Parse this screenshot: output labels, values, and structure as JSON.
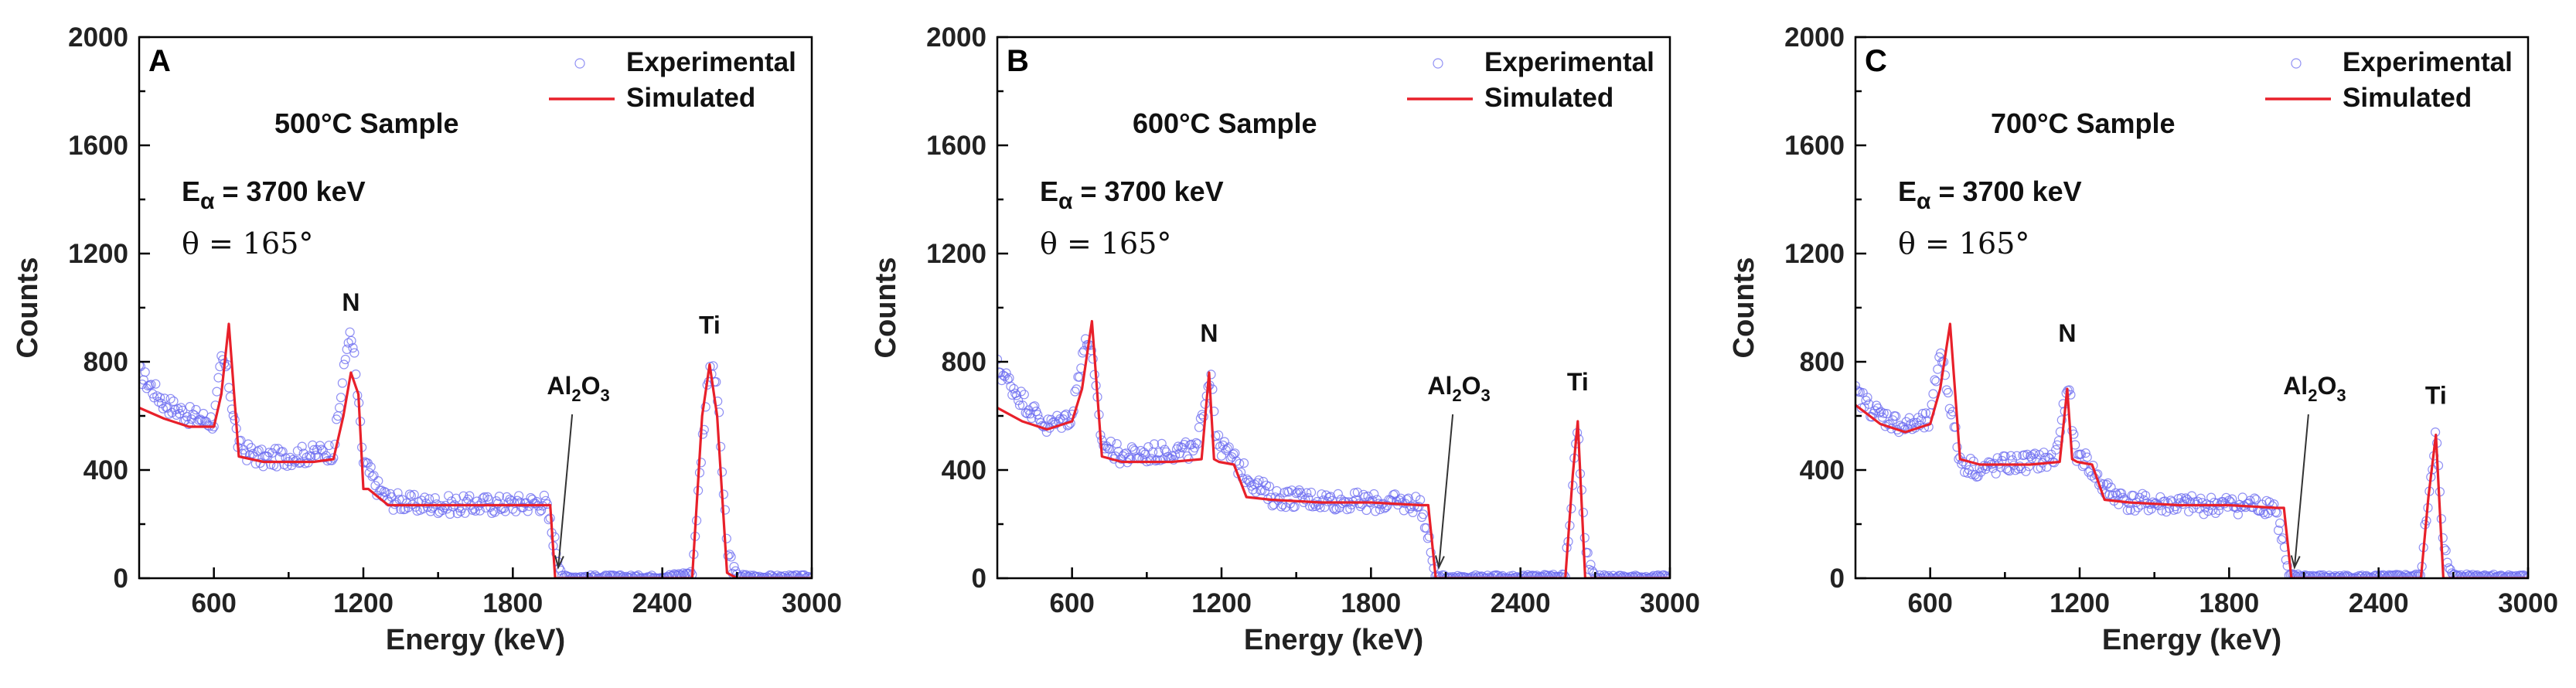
{
  "colors": {
    "experimental": "#6b6bf0",
    "simulated": "#e8202a",
    "axis": "#000000"
  },
  "chart_data": [
    {
      "type": "line",
      "panel_label": "A",
      "title": "",
      "xlabel": "Energy (keV)",
      "ylabel": "Counts",
      "xlim": [
        300,
        3000
      ],
      "ylim": [
        0,
        2000
      ],
      "x_ticks": [
        600,
        1200,
        1800,
        2400,
        3000
      ],
      "y_ticks": [
        0,
        400,
        800,
        1200,
        1600,
        2000
      ],
      "legend_placement": "top-right",
      "annotations": {
        "sample": "500°C Sample",
        "energy": "E",
        "energy_sub": "α",
        "energy_val": " = 3700 keV",
        "theta": "θ = 165°"
      },
      "peak_labels": {
        "n": "N",
        "ti": "Ti",
        "al": "Al",
        "al_sub1": "2",
        "al_o": "O",
        "al_sub2": "3"
      },
      "series": [
        {
          "name": "Experimental",
          "style": "scatter",
          "x": [
            300,
            400,
            500,
            600,
            630,
            650,
            700,
            800,
            900,
            1000,
            1080,
            1120,
            1140,
            1160,
            1200,
            1230,
            1260,
            1300,
            1400,
            1600,
            1800,
            1930,
            1960,
            2000,
            2200,
            2400,
            2520,
            2560,
            2590,
            2620,
            2660,
            2700,
            2800,
            3000
          ],
          "y": [
            760,
            650,
            600,
            580,
            800,
            780,
            480,
            440,
            450,
            460,
            470,
            750,
            900,
            850,
            430,
            380,
            330,
            290,
            275,
            270,
            275,
            280,
            160,
            5,
            5,
            5,
            20,
            500,
            800,
            700,
            100,
            10,
            5,
            5
          ]
        },
        {
          "name": "Simulated",
          "style": "line",
          "x": [
            300,
            400,
            500,
            600,
            630,
            660,
            700,
            800,
            1000,
            1080,
            1120,
            1150,
            1180,
            1200,
            1220,
            1260,
            1300,
            1500,
            1800,
            1950,
            1970,
            2000,
            2200,
            2400,
            2520,
            2560,
            2590,
            2620,
            2660,
            2700,
            3000
          ],
          "y": [
            630,
            590,
            560,
            560,
            680,
            940,
            450,
            430,
            430,
            440,
            600,
            760,
            680,
            330,
            330,
            300,
            270,
            270,
            270,
            270,
            0,
            0,
            0,
            0,
            0,
            600,
            790,
            600,
            20,
            0,
            0
          ]
        }
      ]
    },
    {
      "type": "line",
      "panel_label": "B",
      "title": "",
      "xlabel": "Energy (keV)",
      "ylabel": "Counts",
      "xlim": [
        300,
        3000
      ],
      "ylim": [
        0,
        2000
      ],
      "x_ticks": [
        600,
        1200,
        1800,
        2400,
        3000
      ],
      "y_ticks": [
        0,
        400,
        800,
        1200,
        1600,
        2000
      ],
      "legend_placement": "top-right",
      "annotations": {
        "sample": "600°C Sample",
        "energy": "E",
        "energy_sub": "α",
        "energy_val": " = 3700 keV",
        "theta": "θ = 165°"
      },
      "peak_labels": {
        "n": "N",
        "ti": "Ti",
        "al": "Al",
        "al_sub1": "2",
        "al_o": "O",
        "al_sub2": "3"
      },
      "series": [
        {
          "name": "Experimental",
          "style": "scatter",
          "x": [
            300,
            400,
            500,
            600,
            640,
            670,
            720,
            800,
            900,
            1000,
            1100,
            1140,
            1160,
            1180,
            1220,
            1300,
            1400,
            1600,
            1800,
            2000,
            2030,
            2060,
            2200,
            2400,
            2580,
            2610,
            2630,
            2660,
            2700,
            2800,
            3000
          ],
          "y": [
            780,
            660,
            560,
            600,
            830,
            890,
            500,
            450,
            460,
            470,
            470,
            700,
            760,
            500,
            470,
            380,
            300,
            290,
            280,
            275,
            140,
            5,
            5,
            5,
            10,
            350,
            570,
            100,
            5,
            5,
            5
          ]
        },
        {
          "name": "Simulated",
          "style": "line",
          "x": [
            300,
            400,
            500,
            600,
            640,
            680,
            720,
            800,
            1000,
            1120,
            1150,
            1170,
            1190,
            1250,
            1300,
            1400,
            1600,
            1800,
            2000,
            2030,
            2060,
            2200,
            2400,
            2580,
            2610,
            2630,
            2660,
            3000
          ],
          "y": [
            630,
            580,
            550,
            580,
            700,
            950,
            450,
            430,
            430,
            440,
            760,
            440,
            430,
            420,
            300,
            290,
            280,
            280,
            270,
            270,
            0,
            0,
            0,
            0,
            380,
            580,
            0,
            0
          ]
        }
      ]
    },
    {
      "type": "line",
      "panel_label": "C",
      "title": "",
      "xlabel": "Energy (keV)",
      "ylabel": "Counts",
      "xlim": [
        300,
        3000
      ],
      "ylim": [
        0,
        2000
      ],
      "x_ticks": [
        600,
        1200,
        1800,
        2400,
        3000
      ],
      "y_ticks": [
        0,
        400,
        800,
        1200,
        1600,
        2000
      ],
      "legend_placement": "top-right",
      "annotations": {
        "sample": "700°C Sample",
        "energy": "E",
        "energy_sub": "α",
        "energy_val": " = 3700 keV",
        "theta": "θ = 165°"
      },
      "peak_labels": {
        "n": "N",
        "ti": "Ti",
        "al": "Al",
        "al_sub1": "2",
        "al_o": "O",
        "al_sub2": "3"
      },
      "series": [
        {
          "name": "Experimental",
          "style": "scatter",
          "x": [
            300,
            400,
            500,
            600,
            640,
            670,
            720,
            800,
            900,
            1000,
            1100,
            1140,
            1160,
            1180,
            1220,
            1300,
            1400,
            1600,
            1800,
            1980,
            2010,
            2040,
            2200,
            2400,
            2570,
            2600,
            2630,
            2660,
            2700,
            2800,
            3000
          ],
          "y": [
            680,
            600,
            560,
            580,
            850,
            700,
            430,
            400,
            420,
            430,
            440,
            640,
            700,
            460,
            440,
            330,
            280,
            270,
            270,
            270,
            160,
            10,
            5,
            5,
            10,
            300,
            540,
            100,
            10,
            10,
            5
          ]
        },
        {
          "name": "Simulated",
          "style": "line",
          "x": [
            300,
            400,
            500,
            600,
            640,
            680,
            720,
            800,
            1000,
            1120,
            1150,
            1170,
            1190,
            1250,
            1300,
            1400,
            1600,
            1800,
            1990,
            2020,
            2050,
            2200,
            2400,
            2570,
            2600,
            2630,
            2660,
            3000
          ],
          "y": [
            640,
            570,
            540,
            570,
            700,
            940,
            440,
            420,
            420,
            430,
            700,
            440,
            430,
            420,
            290,
            280,
            270,
            270,
            260,
            260,
            0,
            0,
            0,
            0,
            300,
            530,
            0,
            0
          ]
        }
      ]
    }
  ]
}
